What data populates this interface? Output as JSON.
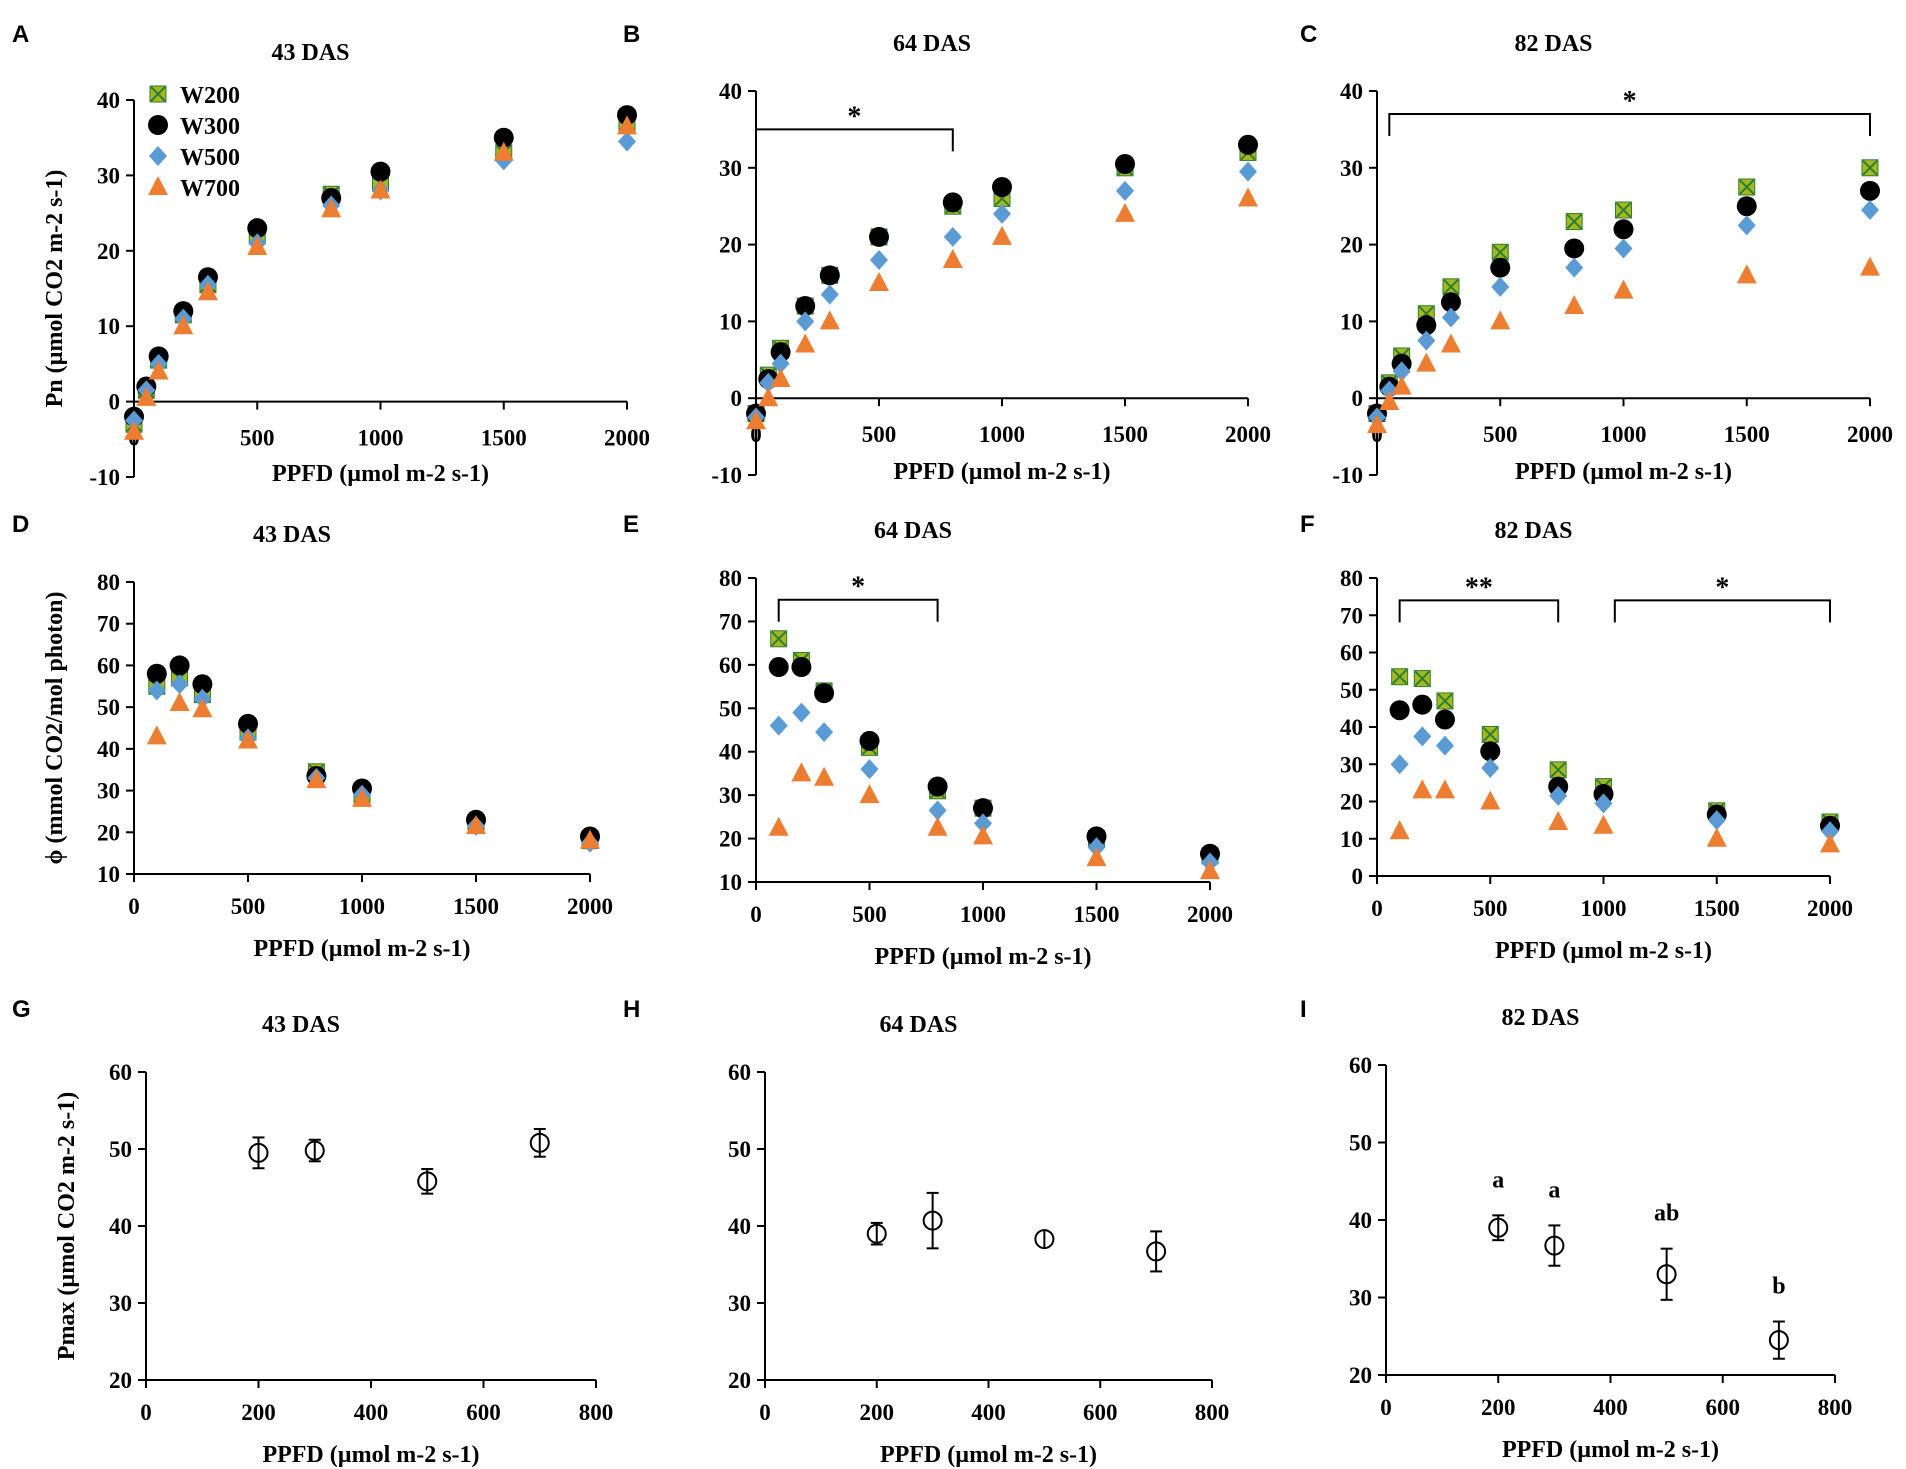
{
  "colors": {
    "W200_fill": "#a4b820",
    "W200_x": "#2e7d32",
    "W300": "#000000",
    "W500": "#5b9bd5",
    "W700": "#ed7d31",
    "err_blue": "#5b9bd5",
    "err_orange": "#ed7d31"
  },
  "legend": [
    "W200",
    "W300",
    "W500",
    "W700"
  ],
  "chart_data": [
    {
      "id": "A",
      "type": "scatter",
      "title": "43 DAS",
      "xlabel": "PPFD (µmol m-2 s-1)",
      "ylabel": "Pn (µmol CO2 m-2 s-1)",
      "xlim": [
        0,
        2000
      ],
      "ylim": [
        -10,
        40
      ],
      "xticks": [
        0,
        500,
        1000,
        1500,
        2000
      ],
      "yticks": [
        -10,
        0,
        10,
        20,
        30,
        40
      ],
      "x": [
        0,
        50,
        100,
        200,
        300,
        500,
        800,
        1000,
        1500,
        2000
      ],
      "series": [
        {
          "name": "W200",
          "values": [
            -3,
            1.5,
            5.5,
            11.5,
            15.5,
            22,
            27.5,
            29,
            33,
            37
          ]
        },
        {
          "name": "W300",
          "values": [
            -2,
            2,
            6,
            12,
            16.5,
            23,
            27,
            30.5,
            35,
            38
          ]
        },
        {
          "name": "W500",
          "values": [
            -2.5,
            1.5,
            5,
            11,
            15.5,
            21,
            26,
            28,
            32,
            34.5
          ]
        },
        {
          "name": "W700",
          "values": [
            -4,
            0.5,
            4,
            10,
            14.5,
            20.5,
            25.5,
            28,
            33,
            36.5
          ]
        }
      ]
    },
    {
      "id": "B",
      "type": "scatter",
      "title": "64 DAS",
      "xlabel": "PPFD (µmol m-2 s-1)",
      "ylabel": "",
      "xlim": [
        0,
        2000
      ],
      "ylim": [
        -10,
        40
      ],
      "xticks": [
        0,
        500,
        1000,
        1500,
        2000
      ],
      "yticks": [
        -10,
        0,
        10,
        20,
        30,
        40
      ],
      "x": [
        0,
        50,
        100,
        200,
        300,
        500,
        800,
        1000,
        1500,
        2000
      ],
      "series": [
        {
          "name": "W200",
          "values": [
            -2,
            3,
            6.5,
            12,
            16,
            21,
            25,
            26,
            30,
            32
          ]
        },
        {
          "name": "W300",
          "values": [
            -2,
            2.5,
            6,
            12,
            16,
            21,
            25.5,
            27.5,
            30.5,
            33
          ]
        },
        {
          "name": "W500",
          "values": [
            -2.5,
            2,
            4.5,
            10,
            13.5,
            18,
            21,
            24,
            27,
            29.5
          ]
        },
        {
          "name": "W700",
          "values": [
            -3,
            0,
            2.5,
            7,
            10,
            15,
            18,
            21,
            24,
            26
          ]
        }
      ],
      "annotations": [
        {
          "text": "*",
          "x_from": 0,
          "x_to": 800,
          "y": 35
        }
      ]
    },
    {
      "id": "C",
      "type": "scatter",
      "title": "82 DAS",
      "xlabel": "PPFD (µmol m-2 s-1)",
      "ylabel": "",
      "xlim": [
        0,
        2000
      ],
      "ylim": [
        -10,
        40
      ],
      "xticks": [
        0,
        500,
        1000,
        1500,
        2000
      ],
      "yticks": [
        -10,
        0,
        10,
        20,
        30,
        40
      ],
      "x": [
        0,
        50,
        100,
        200,
        300,
        500,
        800,
        1000,
        1500,
        2000
      ],
      "series": [
        {
          "name": "W200",
          "values": [
            -2,
            2,
            5.5,
            11,
            14.5,
            19,
            23,
            24.5,
            27.5,
            30
          ]
        },
        {
          "name": "W300",
          "values": [
            -2,
            1.5,
            4.5,
            9.5,
            12.5,
            17,
            19.5,
            22,
            25,
            27
          ]
        },
        {
          "name": "W500",
          "values": [
            -2.5,
            1,
            3.5,
            7.5,
            10.5,
            14.5,
            17,
            19.5,
            22.5,
            24.5
          ]
        },
        {
          "name": "W700",
          "values": [
            -3.5,
            -0.5,
            1.5,
            4.5,
            7,
            10,
            12,
            14,
            16,
            17
          ]
        }
      ],
      "annotations": [
        {
          "text": "*",
          "x_from": 50,
          "x_to": 2000,
          "y": 37
        }
      ]
    },
    {
      "id": "D",
      "type": "scatter",
      "title": "43 DAS",
      "xlabel": "PPFD (µmol m-2 s-1)",
      "ylabel": "ϕ (mmol CO2/mol photon)",
      "xlim": [
        0,
        2000
      ],
      "ylim": [
        10,
        80
      ],
      "xticks": [
        0,
        500,
        1000,
        1500,
        2000
      ],
      "yticks": [
        10,
        20,
        30,
        40,
        50,
        60,
        70,
        80
      ],
      "x": [
        100,
        200,
        300,
        500,
        800,
        1000,
        1500,
        2000
      ],
      "series": [
        {
          "name": "W200",
          "values": [
            55,
            57,
            53,
            44,
            34.5,
            29,
            22,
            18
          ]
        },
        {
          "name": "W300",
          "values": [
            58,
            60,
            55.5,
            46,
            33.5,
            30.5,
            23,
            19
          ]
        },
        {
          "name": "W500",
          "values": [
            54,
            55.5,
            52,
            42.5,
            33,
            29,
            21.5,
            17.5
          ]
        },
        {
          "name": "W700",
          "values": [
            43,
            51,
            49.5,
            42,
            32.5,
            28,
            21.5,
            18
          ]
        }
      ]
    },
    {
      "id": "E",
      "type": "scatter",
      "title": "64 DAS",
      "xlabel": "PPFD (µmol m-2 s-1)",
      "ylabel": "",
      "xlim": [
        0,
        2000
      ],
      "ylim": [
        10,
        80
      ],
      "xticks": [
        0,
        500,
        1000,
        1500,
        2000
      ],
      "yticks": [
        10,
        20,
        30,
        40,
        50,
        60,
        70,
        80
      ],
      "x": [
        100,
        200,
        300,
        500,
        800,
        1000,
        1500,
        2000
      ],
      "series": [
        {
          "name": "W200",
          "values": [
            66,
            61,
            54,
            41,
            31,
            27,
            20,
            16
          ]
        },
        {
          "name": "W300",
          "values": [
            59.5,
            59.5,
            53.5,
            42.5,
            32,
            27,
            20.5,
            16.5
          ]
        },
        {
          "name": "W500",
          "values": [
            46,
            49,
            44.5,
            36,
            26.5,
            23.5,
            18,
            14.5
          ]
        },
        {
          "name": "W700",
          "values": [
            22.5,
            35,
            34,
            30,
            22.5,
            20.5,
            15.5,
            12.5
          ]
        }
      ],
      "annotations": [
        {
          "text": "*",
          "x_from": 100,
          "x_to": 800,
          "y": 75
        }
      ]
    },
    {
      "id": "F",
      "type": "scatter",
      "title": "82 DAS",
      "xlabel": "PPFD (µmol m-2 s-1)",
      "ylabel": "",
      "xlim": [
        0,
        2000
      ],
      "ylim": [
        0,
        80
      ],
      "xticks": [
        0,
        500,
        1000,
        1500,
        2000
      ],
      "yticks": [
        0,
        10,
        20,
        30,
        40,
        50,
        60,
        70,
        80
      ],
      "x": [
        100,
        200,
        300,
        500,
        800,
        1000,
        1500,
        2000
      ],
      "series": [
        {
          "name": "W200",
          "values": [
            53.5,
            53,
            47,
            38,
            28.5,
            24,
            17.5,
            14.5
          ]
        },
        {
          "name": "W300",
          "values": [
            44.5,
            46,
            42,
            33.5,
            24,
            22,
            16.5,
            13.5
          ]
        },
        {
          "name": "W500",
          "values": [
            30,
            37.5,
            35,
            29,
            21.5,
            19.5,
            15,
            12
          ]
        },
        {
          "name": "W700",
          "values": [
            12,
            23,
            23,
            20,
            14.5,
            13.5,
            10,
            8.5
          ]
        }
      ],
      "annotations": [
        {
          "text": "**",
          "x_from": 100,
          "x_to": 800,
          "y": 74
        },
        {
          "text": "*",
          "x_from": 1050,
          "x_to": 2000,
          "y": 74
        }
      ]
    },
    {
      "id": "G",
      "type": "scatter",
      "title": "43 DAS",
      "xlabel": "PPFD (µmol m-2 s-1)",
      "ylabel": "Pmax (µmol CO2 m-2 s-1)",
      "xlim": [
        0,
        800
      ],
      "ylim": [
        20,
        60
      ],
      "xticks": [
        0,
        200,
        400,
        600,
        800
      ],
      "yticks": [
        20,
        30,
        40,
        50,
        60
      ],
      "x": [
        200,
        300,
        500,
        700
      ],
      "values": [
        49.5,
        49.8,
        45.8,
        50.8
      ],
      "errors": [
        2.0,
        1.4,
        1.6,
        1.8
      ]
    },
    {
      "id": "H",
      "type": "scatter",
      "title": "64 DAS",
      "xlabel": "PPFD (µmol m-2 s-1)",
      "ylabel": "",
      "xlim": [
        0,
        800
      ],
      "ylim": [
        20,
        60
      ],
      "xticks": [
        0,
        200,
        400,
        600,
        800
      ],
      "yticks": [
        20,
        30,
        40,
        50,
        60
      ],
      "x": [
        200,
        300,
        500,
        700
      ],
      "values": [
        39,
        40.7,
        38.3,
        36.7
      ],
      "errors": [
        1.4,
        3.6,
        0.5,
        2.6
      ]
    },
    {
      "id": "I",
      "type": "scatter",
      "title": "82 DAS",
      "xlabel": "PPFD (µmol m-2 s-1)",
      "ylabel": "",
      "xlim": [
        0,
        800
      ],
      "ylim": [
        20,
        60
      ],
      "xticks": [
        0,
        200,
        400,
        600,
        800
      ],
      "yticks": [
        20,
        30,
        40,
        50,
        60
      ],
      "x": [
        200,
        300,
        500,
        700
      ],
      "values": [
        39,
        36.7,
        33,
        24.5
      ],
      "errors": [
        1.6,
        2.6,
        3.3,
        2.4
      ],
      "point_labels": [
        "a",
        "a",
        "ab",
        "b"
      ]
    }
  ]
}
